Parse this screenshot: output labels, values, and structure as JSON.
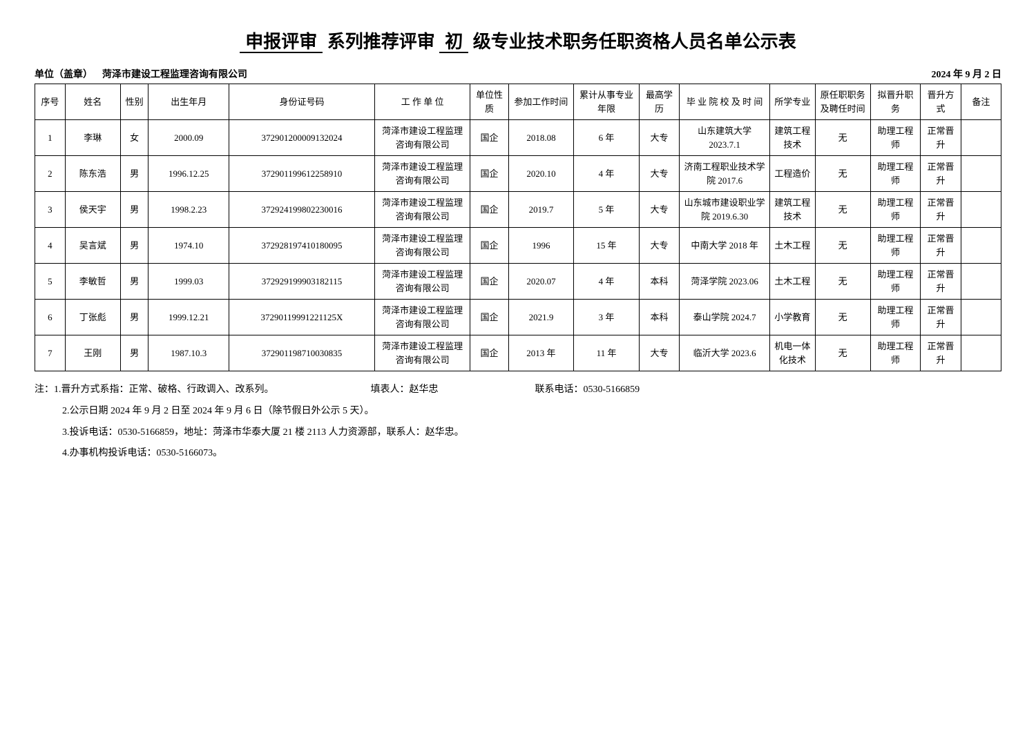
{
  "title": {
    "prefix": "申报评审",
    "mid1": "系列推荐评审",
    "level": "初",
    "suffix": "级专业技术职务任职资格人员名单公示表"
  },
  "header": {
    "unit_label": "单位（盖章）",
    "unit_value": "菏泽市建设工程监理咨询有限公司",
    "date": "2024 年 9 月 2 日"
  },
  "columns": [
    "序号",
    "姓名",
    "性别",
    "出生年月",
    "身份证号码",
    "工 作 单 位",
    "单位性质",
    "参加工作时间",
    "累计从事专业年限",
    "最高学历",
    "毕 业 院 校 及 时 间",
    "所学专业",
    "原任职职务及聘任时间",
    "拟晋升职务",
    "晋升方式",
    "备注"
  ],
  "rows": [
    {
      "seq": "1",
      "name": "李琳",
      "gender": "女",
      "birth": "2000.09",
      "id": "372901200009132024",
      "unit": "菏泽市建设工程监理咨询有限公司",
      "unitnature": "国企",
      "joinwork": "2018.08",
      "years": "6 年",
      "edu": "大专",
      "school": "山东建筑大学 2023.7.1",
      "major": "建筑工程技术",
      "origpost": "无",
      "promote": "助理工程师",
      "method": "正常晋升",
      "remark": ""
    },
    {
      "seq": "2",
      "name": "陈东浩",
      "gender": "男",
      "birth": "1996.12.25",
      "id": "372901199612258910",
      "unit": "菏泽市建设工程监理咨询有限公司",
      "unitnature": "国企",
      "joinwork": "2020.10",
      "years": "4 年",
      "edu": "大专",
      "school": "济南工程职业技术学院 2017.6",
      "major": "工程造价",
      "origpost": "无",
      "promote": "助理工程师",
      "method": "正常晋升",
      "remark": ""
    },
    {
      "seq": "3",
      "name": "侯天宇",
      "gender": "男",
      "birth": "1998.2.23",
      "id": "372924199802230016",
      "unit": "菏泽市建设工程监理咨询有限公司",
      "unitnature": "国企",
      "joinwork": "2019.7",
      "years": "5 年",
      "edu": "大专",
      "school": "山东城市建设职业学院 2019.6.30",
      "major": "建筑工程技术",
      "origpost": "无",
      "promote": "助理工程师",
      "method": "正常晋升",
      "remark": ""
    },
    {
      "seq": "4",
      "name": "吴言斌",
      "gender": "男",
      "birth": "1974.10",
      "id": "372928197410180095",
      "unit": "菏泽市建设工程监理咨询有限公司",
      "unitnature": "国企",
      "joinwork": "1996",
      "years": "15 年",
      "edu": "大专",
      "school": "中南大学 2018 年",
      "major": "土木工程",
      "origpost": "无",
      "promote": "助理工程师",
      "method": "正常晋升",
      "remark": ""
    },
    {
      "seq": "5",
      "name": "李敏哲",
      "gender": "男",
      "birth": "1999.03",
      "id": "372929199903182115",
      "unit": "菏泽市建设工程监理咨询有限公司",
      "unitnature": "国企",
      "joinwork": "2020.07",
      "years": "4 年",
      "edu": "本科",
      "school": "菏泽学院 2023.06",
      "major": "土木工程",
      "origpost": "无",
      "promote": "助理工程师",
      "method": "正常晋升",
      "remark": ""
    },
    {
      "seq": "6",
      "name": "丁张彪",
      "gender": "男",
      "birth": "1999.12.21",
      "id": "37290119991221125X",
      "unit": "菏泽市建设工程监理咨询有限公司",
      "unitnature": "国企",
      "joinwork": "2021.9",
      "years": "3 年",
      "edu": "本科",
      "school": "泰山学院 2024.7",
      "major": "小学教育",
      "origpost": "无",
      "promote": "助理工程师",
      "method": "正常晋升",
      "remark": ""
    },
    {
      "seq": "7",
      "name": "王刚",
      "gender": "男",
      "birth": "1987.10.3",
      "id": "372901198710030835",
      "unit": "菏泽市建设工程监理咨询有限公司",
      "unitnature": "国企",
      "joinwork": "2013 年",
      "years": "11 年",
      "edu": "大专",
      "school": "临沂大学 2023.6",
      "major": "机电一体化技术",
      "origpost": "无",
      "promote": "助理工程师",
      "method": "正常晋升",
      "remark": ""
    }
  ],
  "notes": {
    "n1a": "注：1.晋升方式系指：正常、破格、行政调入、改系列。",
    "n1b": "填表人：赵华忠",
    "n1c": "联系电话：0530-5166859",
    "n2": "2.公示日期 2024 年 9 月 2 日至 2024 年 9 月 6 日（除节假日外公示 5 天）。",
    "n3": "3.投诉电话：0530-5166859，地址：菏泽市华泰大厦 21 楼 2113 人力资源部，联系人：赵华忠。",
    "n4": "4.办事机构投诉电话：0530-5166073。"
  }
}
